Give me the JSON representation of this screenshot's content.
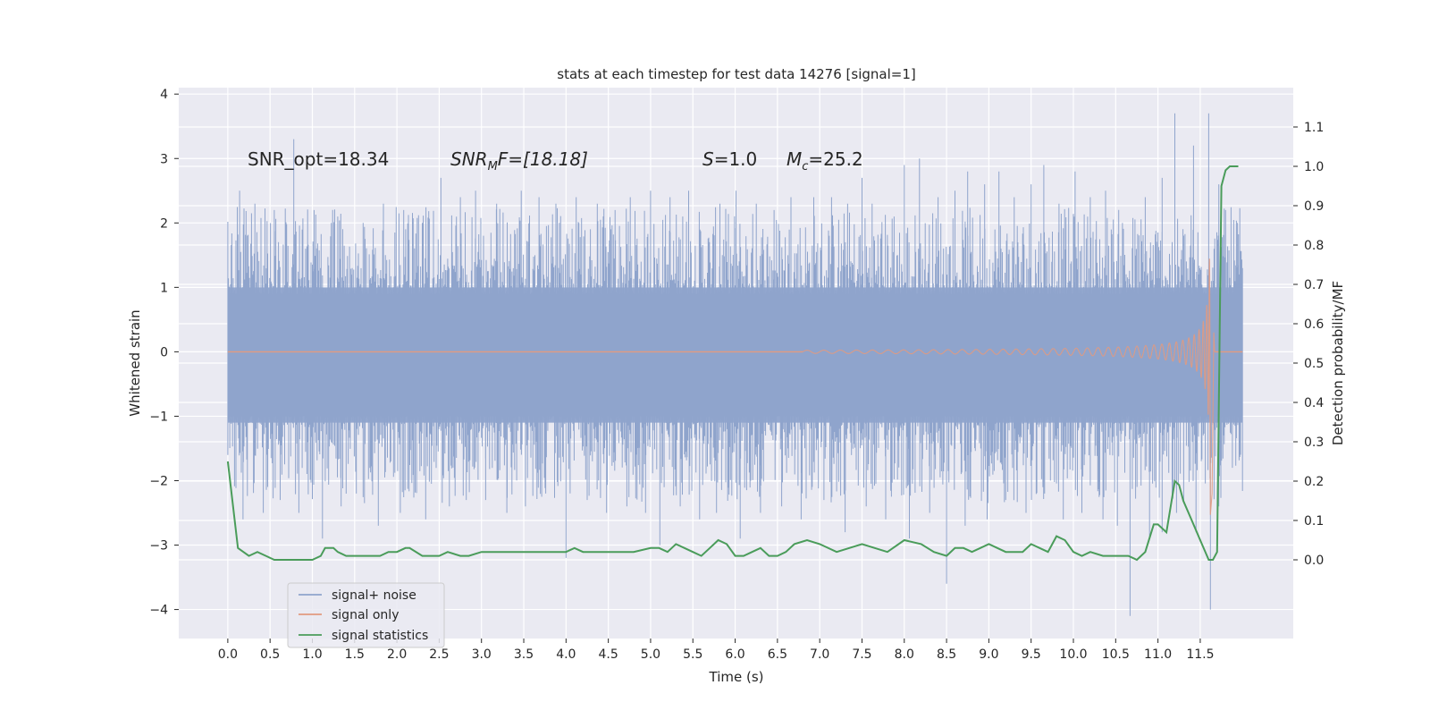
{
  "colors": {
    "plot_bg": "#eaeaf2",
    "grid": "#ffffff",
    "noise": "#8fa4cc",
    "signal": "#e29a80",
    "stats": "#4a9c5a"
  },
  "chart_data": {
    "type": "line",
    "title": "stats at each timestep for test data 14276 [signal=1]",
    "xlabel": "Time (s)",
    "ylabel": "Whitened strain",
    "y2label": "Detection probability/MF",
    "xlim": [
      -0.58,
      12.6
    ],
    "ylim": [
      -4.45,
      4.1
    ],
    "y2lim": [
      -0.2,
      1.2
    ],
    "grid": true,
    "legend_position": "lower-left",
    "x_ticks": [
      0.0,
      0.5,
      1.0,
      1.5,
      2.0,
      2.5,
      3.0,
      3.5,
      4.0,
      4.5,
      5.0,
      5.5,
      6.0,
      6.5,
      7.0,
      7.5,
      8.0,
      8.5,
      9.0,
      9.5,
      10.0,
      10.5,
      11.0,
      11.5
    ],
    "x_tick_labels": [
      "0.0",
      "0.5",
      "1.0",
      "1.5",
      "2.0",
      "2.5",
      "3.0",
      "3.5",
      "4.0",
      "4.5",
      "5.0",
      "5.5",
      "6.0",
      "6.5",
      "7.0",
      "7.5",
      "8.0",
      "8.5",
      "9.0",
      "9.5",
      "10.0",
      "10.5",
      "11.0",
      "11.5"
    ],
    "y_ticks": [
      4,
      3,
      2,
      1,
      0,
      -1,
      -2,
      -3,
      -4
    ],
    "y_tick_labels": [
      "4",
      "3",
      "2",
      "1",
      "0",
      "−1",
      "−2",
      "−3",
      "−4"
    ],
    "y2_ticks": [
      1.1,
      1.0,
      0.9,
      0.8,
      0.7,
      0.6,
      0.5,
      0.4,
      0.3,
      0.2,
      0.1,
      0.0
    ],
    "y2_tick_labels": [
      "1.1",
      "1.0",
      "0.9",
      "0.8",
      "0.7",
      "0.6",
      "0.5",
      "0.4",
      "0.3",
      "0.2",
      "0.1",
      "0.0"
    ],
    "annotations": {
      "snr_opt": "SNR_opt=18.34",
      "snr_mf_sym": "SNR",
      "snr_mf_sub": "M",
      "snr_mf_rest": "F=[18.18]",
      "s_sym": "S",
      "s_val": "=1.0",
      "mc_sym": "M",
      "mc_sub": "c",
      "mc_val": "=25.2"
    },
    "series": [
      {
        "name": "signal+ noise",
        "axis": "left",
        "description_range": [
          0.0,
          12.0
        ],
        "peaks": [
          [
            0.0,
            1.4
          ],
          [
            0.14,
            2.5
          ],
          [
            0.32,
            2.3
          ],
          [
            0.55,
            2.2
          ],
          [
            0.78,
            3.3
          ],
          [
            1.02,
            2.2
          ],
          [
            1.3,
            2.1
          ],
          [
            1.6,
            2.0
          ],
          [
            1.84,
            2.3
          ],
          [
            2.08,
            2.2
          ],
          [
            2.3,
            2.0
          ],
          [
            2.52,
            2.7
          ],
          [
            2.75,
            2.4
          ],
          [
            2.93,
            2.5
          ],
          [
            3.18,
            2.3
          ],
          [
            3.47,
            2.5
          ],
          [
            3.68,
            2.4
          ],
          [
            3.88,
            2.3
          ],
          [
            4.12,
            2.4
          ],
          [
            4.37,
            2.3
          ],
          [
            4.58,
            2.2
          ],
          [
            4.76,
            2.4
          ],
          [
            5.0,
            2.5
          ],
          [
            5.23,
            2.4
          ],
          [
            5.38,
            2.1
          ],
          [
            5.45,
            2.5
          ],
          [
            5.82,
            2.3
          ],
          [
            6.01,
            2.5
          ],
          [
            6.25,
            2.3
          ],
          [
            6.46,
            2.2
          ],
          [
            6.66,
            2.4
          ],
          [
            6.93,
            2.4
          ],
          [
            7.14,
            2.4
          ],
          [
            7.33,
            2.3
          ],
          [
            7.5,
            2.7
          ],
          [
            7.62,
            2.3
          ],
          [
            7.88,
            2.1
          ],
          [
            8.0,
            2.9
          ],
          [
            8.18,
            3.0
          ],
          [
            8.4,
            2.4
          ],
          [
            8.6,
            2.5
          ],
          [
            8.75,
            2.8
          ],
          [
            8.95,
            2.6
          ],
          [
            9.12,
            2.8
          ],
          [
            9.3,
            2.4
          ],
          [
            9.5,
            2.6
          ],
          [
            9.65,
            2.9
          ],
          [
            9.83,
            2.3
          ],
          [
            10.02,
            2.8
          ],
          [
            10.2,
            2.4
          ],
          [
            10.38,
            2.5
          ],
          [
            10.58,
            2.0
          ],
          [
            10.85,
            2.4
          ],
          [
            11.05,
            2.7
          ],
          [
            11.2,
            3.7
          ],
          [
            11.42,
            3.2
          ],
          [
            11.6,
            3.7
          ],
          [
            11.72,
            2.6
          ],
          [
            11.8,
            2.2
          ],
          [
            11.94,
            2.0
          ],
          [
            12.0,
            1.3
          ]
        ],
        "troughs": [
          [
            0.0,
            -1.6
          ],
          [
            0.18,
            -2.6
          ],
          [
            0.42,
            -2.5
          ],
          [
            0.62,
            -2.3
          ],
          [
            0.84,
            -2.5
          ],
          [
            1.12,
            -2.9
          ],
          [
            1.34,
            -2.4
          ],
          [
            1.52,
            -2.2
          ],
          [
            1.78,
            -2.7
          ],
          [
            2.04,
            -2.5
          ],
          [
            2.34,
            -2.6
          ],
          [
            2.62,
            -2.4
          ],
          [
            2.82,
            -2.3
          ],
          [
            3.05,
            -2.3
          ],
          [
            3.3,
            -2.5
          ],
          [
            3.52,
            -2.4
          ],
          [
            3.76,
            -2.2
          ],
          [
            4.0,
            -3.2
          ],
          [
            4.25,
            -2.3
          ],
          [
            4.48,
            -2.5
          ],
          [
            4.72,
            -2.4
          ],
          [
            4.94,
            -2.5
          ],
          [
            5.11,
            -3.0
          ],
          [
            5.35,
            -2.4
          ],
          [
            5.58,
            -2.6
          ],
          [
            5.78,
            -2.5
          ],
          [
            6.06,
            -2.9
          ],
          [
            6.3,
            -2.5
          ],
          [
            6.55,
            -2.4
          ],
          [
            6.78,
            -2.6
          ],
          [
            7.05,
            -2.3
          ],
          [
            7.3,
            -2.8
          ],
          [
            7.55,
            -2.4
          ],
          [
            7.78,
            -2.6
          ],
          [
            8.06,
            -2.9
          ],
          [
            8.3,
            -2.5
          ],
          [
            8.5,
            -3.6
          ],
          [
            8.72,
            -2.7
          ],
          [
            8.98,
            -2.6
          ],
          [
            9.2,
            -2.3
          ],
          [
            9.44,
            -2.5
          ],
          [
            9.66,
            -2.2
          ],
          [
            9.88,
            -2.6
          ],
          [
            10.1,
            -2.5
          ],
          [
            10.35,
            -2.6
          ],
          [
            10.52,
            -2.7
          ],
          [
            10.67,
            -4.1
          ],
          [
            10.9,
            -2.9
          ],
          [
            11.05,
            -2.8
          ],
          [
            11.22,
            -2.5
          ],
          [
            11.45,
            -2.8
          ],
          [
            11.62,
            -4.0
          ],
          [
            11.72,
            -2.4
          ],
          [
            11.88,
            -1.8
          ],
          [
            12.0,
            -1.4
          ]
        ]
      },
      {
        "name": "signal only",
        "axis": "left",
        "t_start": 6.8,
        "t_merger": 11.62,
        "t_end": 12.0,
        "peak_amplitude": 3.5
      },
      {
        "name": "signal statistics",
        "axis": "right",
        "x": [
          0.0,
          0.12,
          0.25,
          0.35,
          0.45,
          0.55,
          0.7,
          0.85,
          1.0,
          1.1,
          1.15,
          1.25,
          1.3,
          1.4,
          1.5,
          1.6,
          1.8,
          1.9,
          2.0,
          2.1,
          2.15,
          2.3,
          2.4,
          2.5,
          2.6,
          2.75,
          2.85,
          3.0,
          3.1,
          3.25,
          3.5,
          3.7,
          3.8,
          3.9,
          4.0,
          4.1,
          4.2,
          4.3,
          4.4,
          4.6,
          4.8,
          5.0,
          5.1,
          5.2,
          5.3,
          5.4,
          5.5,
          5.6,
          5.7,
          5.8,
          5.9,
          6.0,
          6.1,
          6.2,
          6.3,
          6.4,
          6.5,
          6.6,
          6.7,
          6.85,
          7.0,
          7.2,
          7.35,
          7.5,
          7.65,
          7.8,
          8.0,
          8.2,
          8.35,
          8.5,
          8.6,
          8.7,
          8.8,
          8.9,
          9.0,
          9.1,
          9.2,
          9.3,
          9.4,
          9.5,
          9.6,
          9.7,
          9.8,
          9.9,
          10.0,
          10.1,
          10.2,
          10.35,
          10.5,
          10.65,
          10.75,
          10.85,
          10.95,
          11.0,
          11.1,
          11.2,
          11.25,
          11.3,
          11.4,
          11.5,
          11.6,
          11.65,
          11.7,
          11.75,
          11.8,
          11.85,
          11.9,
          11.95
        ],
        "values": [
          0.25,
          0.03,
          0.01,
          0.02,
          0.01,
          0.0,
          0.0,
          0.0,
          0.0,
          0.01,
          0.03,
          0.03,
          0.02,
          0.01,
          0.01,
          0.01,
          0.01,
          0.02,
          0.02,
          0.03,
          0.03,
          0.01,
          0.01,
          0.01,
          0.02,
          0.01,
          0.01,
          0.02,
          0.02,
          0.02,
          0.02,
          0.02,
          0.02,
          0.02,
          0.02,
          0.03,
          0.02,
          0.02,
          0.02,
          0.02,
          0.02,
          0.03,
          0.03,
          0.02,
          0.04,
          0.03,
          0.02,
          0.01,
          0.03,
          0.05,
          0.04,
          0.01,
          0.01,
          0.02,
          0.03,
          0.01,
          0.01,
          0.02,
          0.04,
          0.05,
          0.04,
          0.02,
          0.03,
          0.04,
          0.03,
          0.02,
          0.05,
          0.04,
          0.02,
          0.01,
          0.03,
          0.03,
          0.02,
          0.03,
          0.04,
          0.03,
          0.02,
          0.02,
          0.02,
          0.04,
          0.03,
          0.02,
          0.06,
          0.05,
          0.02,
          0.01,
          0.02,
          0.01,
          0.01,
          0.01,
          0.0,
          0.02,
          0.09,
          0.09,
          0.07,
          0.2,
          0.19,
          0.15,
          0.1,
          0.05,
          0.0,
          0.0,
          0.02,
          0.95,
          0.99,
          1.0,
          1.0,
          1.0
        ]
      }
    ]
  }
}
